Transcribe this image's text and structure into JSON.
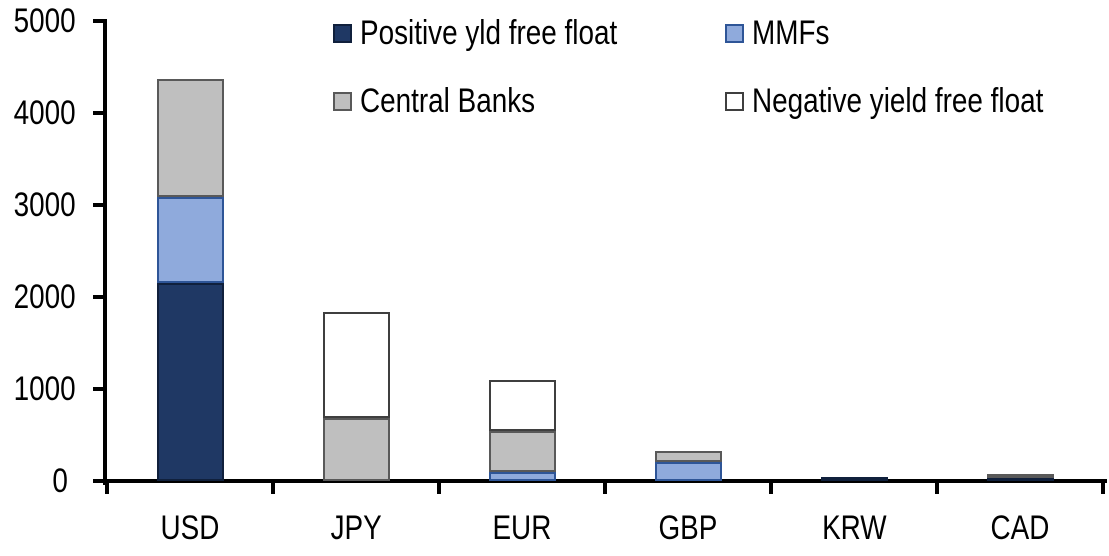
{
  "chart_data": {
    "type": "bar",
    "stacked": true,
    "title": "",
    "xlabel": "",
    "ylabel": "",
    "categories": [
      "USD",
      "JPY",
      "EUR",
      "GBP",
      "KRW",
      "CAD"
    ],
    "series": [
      {
        "name": "Positive yld free float",
        "color": "#1f3864",
        "border_color": "#10203c",
        "values": [
          2150,
          0,
          0,
          0,
          45,
          30
        ]
      },
      {
        "name": "MMFs",
        "color": "#8faadc",
        "border_color": "#2e5597",
        "values": [
          940,
          0,
          100,
          210,
          0,
          0
        ]
      },
      {
        "name": "Central Banks",
        "color": "#bfbfbf",
        "border_color": "#595959",
        "values": [
          1280,
          690,
          440,
          120,
          0,
          35
        ]
      },
      {
        "name": "Negative yield free float",
        "color": "#ffffff",
        "border_color": "#3f3f3f",
        "values": [
          0,
          1150,
          560,
          0,
          0,
          0
        ]
      }
    ],
    "totals": {
      "USD": 4370,
      "JPY": 1840,
      "EUR": 1100,
      "GBP": 330,
      "KRW": 45,
      "CAD": 65
    },
    "ylim": [
      0,
      5000
    ],
    "ytick_step": 1000,
    "ytick_labels": [
      "0",
      "1000",
      "2000",
      "3000",
      "4000",
      "5000"
    ],
    "grid": false,
    "legend_position": "top",
    "axis_color": "#000000",
    "background_color": "#ffffff"
  }
}
